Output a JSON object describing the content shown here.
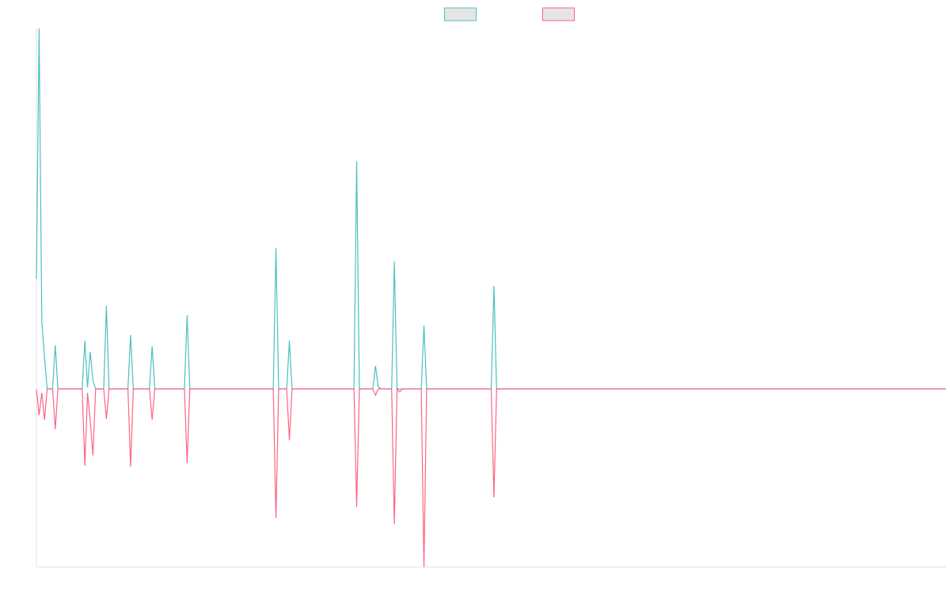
{
  "chart_data": {
    "type": "line",
    "legend": "top",
    "x": [
      0,
      1,
      2,
      3,
      4,
      6,
      7,
      8,
      17,
      18,
      19,
      20,
      21,
      22,
      25,
      26,
      27,
      34,
      35,
      36,
      42,
      43,
      44,
      55,
      56,
      57,
      88,
      89,
      90,
      93,
      94,
      95,
      118,
      119,
      120,
      125,
      126,
      127,
      128,
      132,
      133,
      134,
      135,
      136,
      143,
      144,
      145,
      169,
      170,
      171,
      338
    ],
    "xlim": [
      0,
      338
    ],
    "ylim": [
      -225,
      455
    ],
    "series": [
      {
        "color": "#4bc0c0",
        "values": [
          139,
          455,
          86,
          40,
          0,
          0,
          55,
          0,
          0,
          61,
          2,
          47,
          10,
          0,
          0,
          105,
          0,
          0,
          68,
          0,
          0,
          54,
          0,
          0,
          93,
          0,
          0,
          178,
          0,
          0,
          61,
          0,
          0,
          287,
          0,
          0,
          29,
          3,
          0,
          0,
          161,
          0,
          0,
          0,
          0,
          80,
          0,
          0,
          130,
          0,
          0
        ]
      },
      {
        "color": "#ff6384",
        "values": [
          -1,
          -33,
          -5,
          -39,
          0,
          0,
          -51,
          0,
          0,
          -97,
          -5,
          -40,
          -84,
          0,
          0,
          -38,
          0,
          0,
          -98,
          0,
          0,
          -39,
          0,
          0,
          -94,
          0,
          0,
          -163,
          0,
          0,
          -65,
          0,
          0,
          -149,
          0,
          0,
          -8,
          0,
          0,
          0,
          -171,
          0,
          -4,
          0,
          0,
          -225,
          0,
          0,
          -137,
          0,
          0
        ]
      }
    ]
  }
}
